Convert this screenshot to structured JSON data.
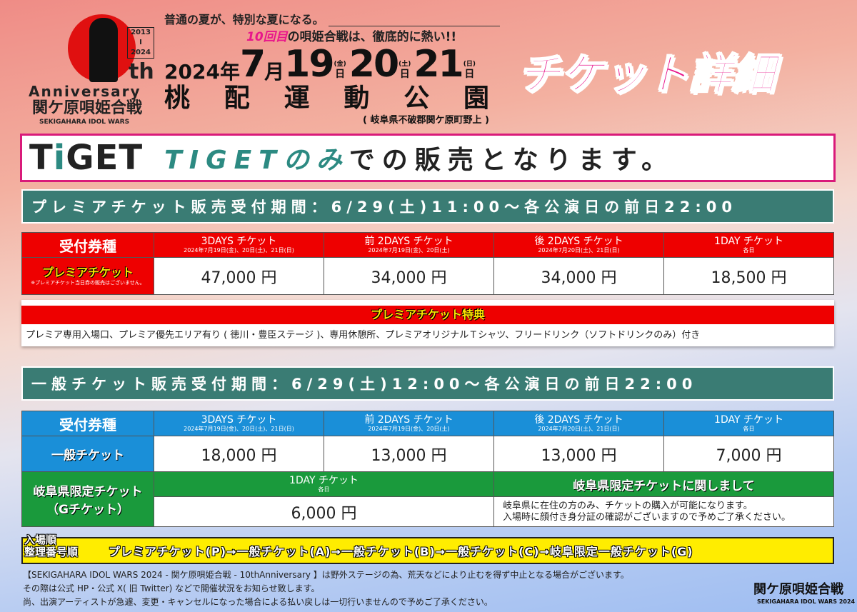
{
  "logo": {
    "years_top": "2013",
    "years_sep": "I",
    "years_bottom": "2024",
    "th": "th",
    "anniversary": "Anniversary",
    "name_jp": "関ケ原唄姫合戦",
    "name_en": "SEKIGAHARA IDOL WARS"
  },
  "header": {
    "tagline1": "普通の夏が、特別な夏になる。",
    "tagline2_em": "10回目",
    "tagline2": "の唄姫合戦は、徹底的に熱い!!",
    "year": "2024",
    "year_unit": "年",
    "month": "7",
    "month_unit": "月",
    "days": [
      {
        "day": "19",
        "dow": "(金)",
        "unit": "日"
      },
      {
        "day": "20",
        "dow": "(土)",
        "unit": "日"
      },
      {
        "day": "21",
        "dow": "(日)",
        "unit": "日"
      }
    ],
    "venue": [
      "桃",
      "配",
      "運",
      "動",
      "公",
      "園"
    ],
    "address": "( 岐阜県不破郡関ケ原町野上 )",
    "title": "チケット詳細"
  },
  "tiget": {
    "logo_a": "T",
    "logo_i": "i",
    "logo_b": "GET",
    "msg_em": "TIGETのみ",
    "msg": "での販売となります。"
  },
  "premium": {
    "period": "プレミアチケット販売受付期間：6/29(土)11:00〜各公演日の前日22:00",
    "header_label": "受付券種",
    "columns": [
      {
        "title": "3DAYS チケット",
        "sub": "2024年7月19日(金)、20日(土)、21日(日)"
      },
      {
        "title": "前 2DAYS チケット",
        "sub": "2024年7月19日(金)、20日(土)"
      },
      {
        "title": "後 2DAYS チケット",
        "sub": "2024年7月20日(土)、21日(日)"
      },
      {
        "title": "1DAY チケット",
        "sub": "各日"
      }
    ],
    "row_label": "プレミアチケット",
    "row_note": "※プレミアチケット当日券の販売はございません。",
    "prices": [
      "47,000 円",
      "34,000 円",
      "34,000 円",
      "18,500 円"
    ],
    "benefit_title": "プレミアチケット特典",
    "benefit_text": "プレミア専用入場口、プレミア優先エリア有り ( 徳川・豊臣ステージ )、専用休憩所、プレミアオリジナルＴシャツ、フリードリンク（ソフトドリンクのみ）付き"
  },
  "general": {
    "period": "一般チケット販売受付期間：6/29(土)12:00〜各公演日の前日22:00",
    "header_label": "受付券種",
    "columns": [
      {
        "title": "3DAYS チケット",
        "sub": "2024年7月19日(金)、20日(土)、21日(日)"
      },
      {
        "title": "前 2DAYS チケット",
        "sub": "2024年7月19日(金)、20日(土)"
      },
      {
        "title": "後 2DAYS チケット",
        "sub": "2024年7月20日(土)、21日(日)"
      },
      {
        "title": "1DAY チケット",
        "sub": "各日"
      }
    ],
    "row_label": "一般チケット",
    "prices": [
      "18,000 円",
      "13,000 円",
      "13,000 円",
      "7,000 円"
    ],
    "gifu_label1": "岐阜県限定チケット",
    "gifu_label2": "（Gチケット）",
    "gifu_col_title": "1DAY チケット",
    "gifu_col_sub": "各日",
    "gifu_price": "6,000 円",
    "gifu_about_title": "岐阜県限定チケットに関しまして",
    "gifu_about_1": "岐阜県に在住の方のみ、チケットの購入が可能になります。",
    "gifu_about_2": "入場時に顔付き身分証の確認がございますので予めご了承ください。"
  },
  "entry": {
    "label1": "入場順",
    "label2": "整理番号順",
    "order": "プレミアチケット(P)→一般チケット(A)→一般チケット(B)→一般チケット(C)→岐阜限定一般チケット(G)"
  },
  "footer": {
    "line1": "【SEKIGAHARA IDOL WARS 2024 - 関ケ原唄姫合戦 - 10thAnniversary 】は野外ステージの為、荒天などにより止むを得ず中止となる場合がございます。",
    "line2": "その際は公式 HP・公式 X( 旧 Twitter) などで開催状況をお知らせ致します。",
    "line3": "尚、出演アーティストが急遽、変更・キャンセルになった場合による払い戻しは一切行いませんので予めご了承ください。",
    "logo_jp": "関ケ原唄姫合戦",
    "logo_en": "SEKIGAHARA IDOL WARS 2024"
  },
  "colors": {
    "accent_pink": "#e8168b",
    "teal": "#3a7c74",
    "premium_red": "#ee0000",
    "general_blue": "#1a8fd8",
    "gifu_green": "#1a9a3c",
    "entry_yellow": "#ffed00"
  }
}
